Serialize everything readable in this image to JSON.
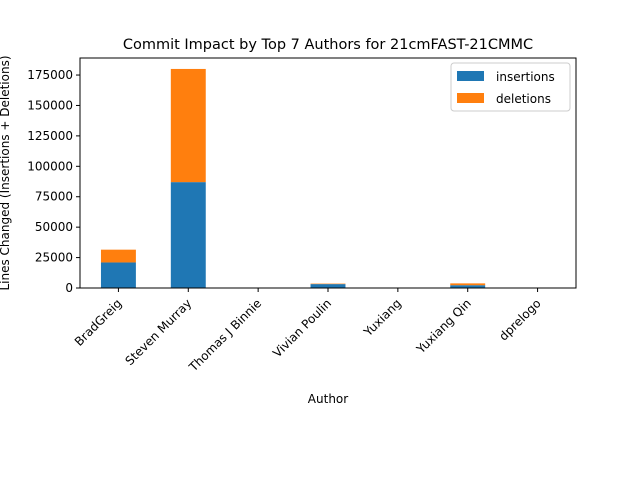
{
  "chart_data": {
    "type": "bar",
    "stacked": true,
    "title": "Commit Impact by Top 7 Authors for 21cmFAST-21CMMC",
    "xlabel": "Author",
    "ylabel": "Lines Changed (Insertions + Deletions)",
    "categories": [
      "BradGreig",
      "Steven Murray",
      "Thomas J Binnie",
      "Vivian Poulin",
      "Yuxiang",
      "Yuxiang Qin",
      "dprelogo"
    ],
    "series": [
      {
        "name": "insertions",
        "color": "#1f77b4",
        "values": [
          21000,
          87000,
          80,
          3200,
          30,
          2300,
          20
        ]
      },
      {
        "name": "deletions",
        "color": "#ff7f0e",
        "values": [
          10500,
          93000,
          40,
          400,
          15,
          1500,
          10
        ]
      }
    ],
    "ylim": [
      0,
      189000
    ],
    "yticks": [
      0,
      25000,
      50000,
      75000,
      100000,
      125000,
      150000,
      175000
    ],
    "ytick_labels": [
      "0",
      "25000",
      "50000",
      "75000",
      "100000",
      "125000",
      "150000",
      "175000"
    ],
    "legend_position": "top-right",
    "grid": false
  }
}
